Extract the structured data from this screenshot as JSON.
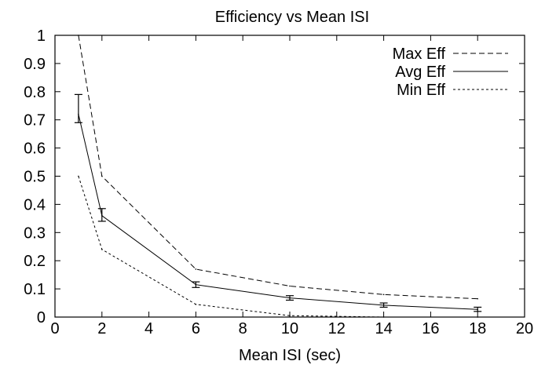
{
  "chart_data": {
    "type": "line",
    "title": "Efficiency vs Mean ISI",
    "xlabel": "Mean ISI (sec)",
    "ylabel": "",
    "xlim": [
      0,
      20
    ],
    "ylim": [
      0,
      1
    ],
    "xticks": [
      "0",
      "2",
      "4",
      "6",
      "8",
      "10",
      "12",
      "14",
      "16",
      "18",
      "20"
    ],
    "yticks": [
      "0",
      "0.1",
      "0.2",
      "0.3",
      "0.4",
      "0.5",
      "0.6",
      "0.7",
      "0.8",
      "0.9",
      "1"
    ],
    "grid": false,
    "legend_position": "top-right",
    "series": [
      {
        "name": "Max Eff",
        "style": "dashed",
        "color": "#000000",
        "x": [
          1,
          2,
          6,
          10,
          14,
          18
        ],
        "y": [
          1.0,
          0.5,
          0.17,
          0.11,
          0.08,
          0.065
        ]
      },
      {
        "name": "Avg Eff",
        "style": "solid",
        "color": "#000000",
        "x": [
          1,
          2,
          6,
          10,
          14,
          18
        ],
        "y": [
          0.72,
          0.36,
          0.115,
          0.068,
          0.042,
          0.027
        ],
        "error_low": [
          0.69,
          0.34,
          0.105,
          0.06,
          0.035,
          0.02
        ],
        "error_high": [
          0.79,
          0.385,
          0.125,
          0.076,
          0.05,
          0.035
        ]
      },
      {
        "name": "Min Eff",
        "style": "dotted",
        "color": "#000000",
        "x": [
          1,
          2,
          6,
          10,
          14,
          18
        ],
        "y": [
          0.5,
          0.24,
          0.045,
          0.005,
          0.0,
          0.0
        ]
      }
    ]
  }
}
